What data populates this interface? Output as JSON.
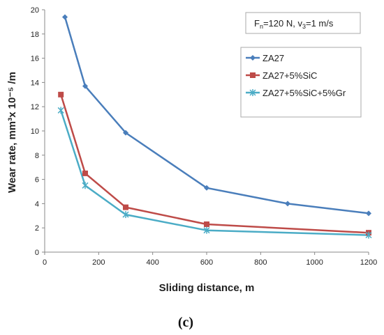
{
  "chart_data": {
    "type": "line",
    "title": "",
    "xlabel": "Sliding distance,  m",
    "ylabel": "Wear rate,  mm³x 10⁻⁵ /m",
    "xlim": [
      0,
      1200
    ],
    "ylim": [
      0,
      20
    ],
    "xticks": [
      0,
      200,
      400,
      600,
      800,
      1000,
      1200
    ],
    "yticks": [
      0,
      2,
      4,
      6,
      8,
      10,
      12,
      14,
      16,
      18,
      20
    ],
    "grid": false,
    "legend_position": "right",
    "condition_box": {
      "line1_prefix": "F",
      "line1_sub": "n",
      "line1_mid": "=120 N,  v",
      "line1_sub2": "3",
      "line1_suffix": "=1 m/s"
    },
    "series": [
      {
        "name": "ZA27",
        "color": "#4a7ebb",
        "marker": "diamond",
        "x": [
          75,
          150,
          300,
          600,
          900,
          1200
        ],
        "y": [
          19.4,
          13.7,
          9.85,
          5.3,
          4.0,
          3.2
        ]
      },
      {
        "name": "ZA27+5%SiC",
        "color": "#be4b48",
        "marker": "square",
        "x": [
          60,
          150,
          300,
          600,
          1200
        ],
        "y": [
          13.0,
          6.5,
          3.7,
          2.3,
          1.6
        ]
      },
      {
        "name": "ZA27+5%SiC+5%Gr",
        "color": "#4bacc6",
        "marker": "star",
        "x": [
          60,
          150,
          300,
          600,
          1200
        ],
        "y": [
          11.7,
          5.5,
          3.1,
          1.8,
          1.4
        ]
      }
    ]
  },
  "caption": "(c)"
}
